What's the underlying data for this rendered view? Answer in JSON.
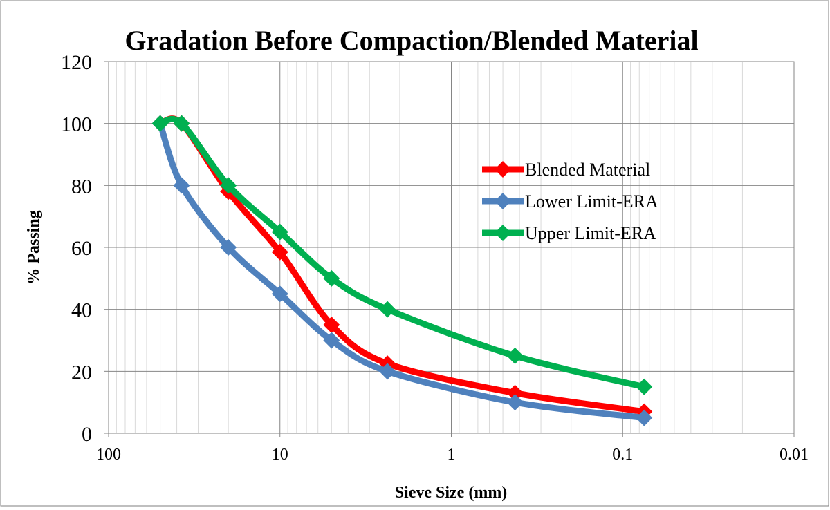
{
  "chart_data": {
    "type": "line",
    "title": "Gradation Before Compaction/Blended Material",
    "xlabel": "Sieve Size (mm)",
    "ylabel": "% Passing",
    "x_scale": "log",
    "x_reversed": true,
    "xlim": [
      100,
      0.01
    ],
    "ylim": [
      0,
      120
    ],
    "x_ticks": [
      100,
      10,
      1,
      0.1,
      0.01
    ],
    "x_tick_labels": [
      "100",
      "10",
      "1",
      "0.1",
      "0.01"
    ],
    "y_ticks": [
      0,
      20,
      40,
      60,
      80,
      100,
      120
    ],
    "y_tick_labels": [
      "0",
      "20",
      "40",
      "60",
      "80",
      "100",
      "120"
    ],
    "grid": true,
    "legend_position": "right",
    "series": [
      {
        "name": "Blended Material",
        "color": "#ff0000",
        "x": [
          50,
          37.5,
          20,
          10,
          5,
          2.36,
          0.425,
          0.075
        ],
        "y": [
          100,
          100,
          78,
          58.5,
          35,
          22.5,
          13,
          7
        ]
      },
      {
        "name": "Lower Limit-ERA",
        "color": "#4f81bd",
        "x": [
          50,
          37.5,
          20,
          10,
          5,
          2.36,
          0.425,
          0.075
        ],
        "y": [
          100,
          80,
          60,
          45,
          30,
          20,
          10,
          5
        ]
      },
      {
        "name": "Upper Limit-ERA",
        "color": "#00b050",
        "x": [
          50,
          37.5,
          20,
          10,
          5,
          2.36,
          0.425,
          0.075
        ],
        "y": [
          100,
          100,
          80,
          65,
          50,
          40,
          25,
          15
        ]
      }
    ]
  }
}
